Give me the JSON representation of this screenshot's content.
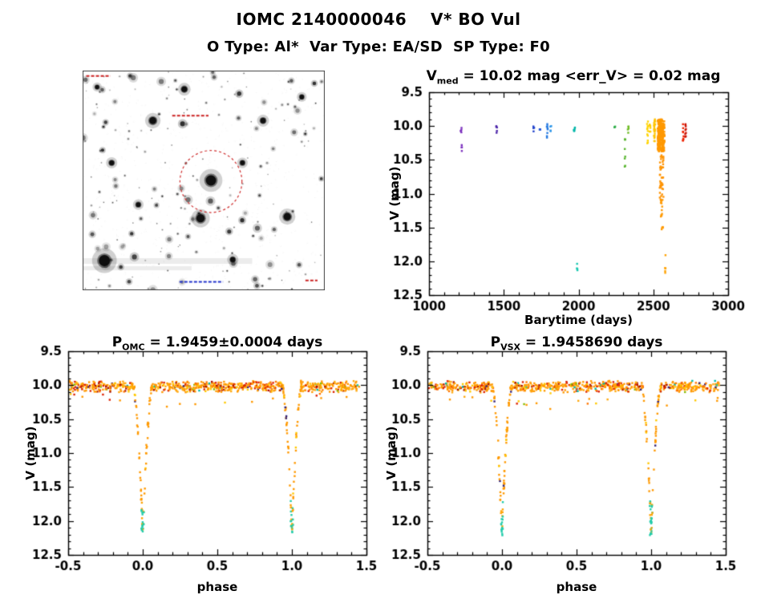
{
  "page": {
    "title": "IOMC 2140000046    V* BO Vul",
    "subtitle": "O Type: Al*  Var Type: EA/SD  SP Type: F0"
  },
  "chart_data": [
    {
      "id": "finder",
      "type": "image",
      "description": "Inverted grayscale star-field finder chart with dashed red circle marking the target star BO Vul; tiny red annotations at top and blue annotation at bottom",
      "background": "#ffffff",
      "circle_color": "#d03030",
      "circle": {
        "x": 0.53,
        "y": 0.505,
        "r": 0.128
      },
      "stars": [
        {
          "x": 0.53,
          "y": 0.5,
          "r": 6.5
        },
        {
          "x": 0.487,
          "y": 0.672,
          "r": 5.2
        },
        {
          "x": 0.09,
          "y": 0.865,
          "r": 7.0
        },
        {
          "x": 0.845,
          "y": 0.665,
          "r": 4.6
        },
        {
          "x": 0.29,
          "y": 0.228,
          "r": 4.4
        },
        {
          "x": 0.42,
          "y": 0.085,
          "r": 3.6
        },
        {
          "x": 0.745,
          "y": 0.228,
          "r": 3.4
        },
        {
          "x": 0.12,
          "y": 0.42,
          "r": 3.2
        },
        {
          "x": 0.66,
          "y": 0.42,
          "r": 3.0
        },
        {
          "x": 0.905,
          "y": 0.12,
          "r": 2.8
        },
        {
          "x": 0.23,
          "y": 0.61,
          "r": 3.0
        },
        {
          "x": 0.62,
          "y": 0.86,
          "r": 3.2
        },
        {
          "x": 0.06,
          "y": 0.075,
          "r": 2.6
        }
      ],
      "marks": [
        {
          "x": 0.015,
          "y": 0.025,
          "w": 0.1,
          "c": "#cc2222"
        },
        {
          "x": 0.37,
          "y": 0.205,
          "w": 0.15,
          "c": "#cc2222"
        },
        {
          "x": 0.4,
          "y": 0.962,
          "w": 0.18,
          "c": "#2233cc"
        },
        {
          "x": 0.92,
          "y": 0.955,
          "w": 0.05,
          "c": "#cc2222"
        }
      ],
      "n_faint_stars": 210,
      "seed": 7
    },
    {
      "id": "barytime",
      "type": "scatter",
      "title": {
        "main": "V",
        "sub": "med",
        "rest": " = 10.02 mag <err_V> = 0.02 mag"
      },
      "xlabel": "Barytime (days)",
      "ylabel": "V (mag)",
      "xlim": [
        1000,
        3000
      ],
      "ylim": [
        9.5,
        12.5
      ],
      "y_inverted": true,
      "x_ticks": [
        1000,
        1500,
        2000,
        2500,
        3000
      ],
      "x_tick_labels": [
        "1000",
        "1500",
        "2000",
        "2500",
        "3000"
      ],
      "x_minor": 100,
      "y_ticks": [
        9.5,
        10.0,
        10.5,
        11.0,
        11.5,
        12.0,
        12.5
      ],
      "y_tick_labels": [
        "9.5",
        "10.0",
        "10.5",
        "11.0",
        "11.5",
        "12.0",
        "12.5"
      ],
      "y_minor": 0.1,
      "seed": 5,
      "clusters": [
        [
          1215,
          6,
          10.0,
          10.12,
          5,
          "#7b2fbe"
        ],
        [
          1218,
          5,
          10.28,
          10.4,
          4,
          "#7b2fbe"
        ],
        [
          1452,
          8,
          10.0,
          10.1,
          5,
          "#4b23a8"
        ],
        [
          1700,
          8,
          10.0,
          10.08,
          4,
          "#2244cc"
        ],
        [
          1742,
          8,
          10.0,
          10.06,
          3,
          "#2455d4"
        ],
        [
          1790,
          8,
          9.97,
          10.2,
          8,
          "#2277e0"
        ],
        [
          1814,
          6,
          10.0,
          10.1,
          4,
          "#2e96e8"
        ],
        [
          1972,
          8,
          10.0,
          10.08,
          5,
          "#00b6a8"
        ],
        [
          1990,
          5,
          12.02,
          12.18,
          4,
          "#18c8b0"
        ],
        [
          2243,
          6,
          10.0,
          10.06,
          3,
          "#2fae4a"
        ],
        [
          2310,
          6,
          10.15,
          10.62,
          8,
          "#57b52e"
        ],
        [
          2332,
          6,
          10.0,
          10.12,
          5,
          "#6cbb22"
        ],
        [
          2462,
          8,
          9.92,
          10.26,
          12,
          "#ffd400"
        ],
        [
          2478,
          6,
          9.95,
          10.12,
          7,
          "#ffcc00"
        ],
        [
          2508,
          9,
          9.9,
          10.3,
          26,
          "#ffc400"
        ],
        [
          2552,
          45,
          9.9,
          10.38,
          240,
          "#ff9900"
        ],
        [
          2555,
          26,
          10.35,
          11.1,
          42,
          "#ff9300"
        ],
        [
          2557,
          14,
          11.05,
          11.55,
          15,
          "#ff9900"
        ],
        [
          2580,
          6,
          11.9,
          12.26,
          5,
          "#ffa200"
        ],
        [
          2700,
          6,
          9.95,
          10.22,
          9,
          "#ee2200"
        ],
        [
          2716,
          6,
          9.95,
          10.22,
          9,
          "#cc1100"
        ]
      ]
    },
    {
      "id": "phase_omc",
      "type": "scatter",
      "title": {
        "main": "P",
        "sub": "OMC",
        "rest": " = 1.9459±0.0004 days"
      },
      "xlabel": "phase",
      "ylabel": "V (mag)",
      "xlim": [
        -0.5,
        1.5
      ],
      "ylim": [
        9.5,
        12.5
      ],
      "y_inverted": true,
      "x_ticks": [
        -0.5,
        0.0,
        0.5,
        1.0,
        1.5
      ],
      "x_tick_labels": [
        "-0.5",
        "0.0",
        "0.5",
        "1.0",
        "1.5"
      ],
      "x_minor": 0.1,
      "y_ticks": [
        9.5,
        10.0,
        10.5,
        11.0,
        11.5,
        12.0,
        12.5
      ],
      "y_tick_labels": [
        "9.5",
        "10.0",
        "10.5",
        "11.0",
        "11.5",
        "12.0",
        "12.5"
      ],
      "y_minor": 0.1,
      "model": {
        "baseline": 10.02,
        "band_scatter": 0.09,
        "depth_mag": 12.16,
        "half_width": 0.065,
        "phase_min": -0.5,
        "phase_max": 1.46,
        "n_band": 760,
        "n_eclipse": 170,
        "seed": 11
      },
      "palette": {
        "band": [
          [
            "#ff9900",
            52
          ],
          [
            "#ffaa11",
            16
          ],
          [
            "#ffc800",
            8
          ],
          [
            "#ff7700",
            7
          ],
          [
            "#dd2200",
            8
          ],
          [
            "#aa1100",
            4
          ],
          [
            "#332277",
            1.5
          ],
          [
            "#00bbaa",
            1.5
          ],
          [
            "#88bb00",
            2
          ]
        ],
        "red_idx": [
          4,
          5
        ],
        "red_mult": 2.6,
        "red_windows": [
          [
            -0.47,
            -0.08
          ],
          [
            0.53,
            0.93
          ]
        ],
        "eclipse_bottom": "#22ccaa"
      }
    },
    {
      "id": "phase_vsx",
      "type": "scatter",
      "title": {
        "main": "P",
        "sub": "VSX",
        "rest": " = 1.9458690 days"
      },
      "xlabel": "phase",
      "ylabel": "V (mag)",
      "xlim": [
        -0.5,
        1.5
      ],
      "ylim": [
        9.5,
        12.5
      ],
      "y_inverted": true,
      "x_ticks": [
        -0.5,
        0.0,
        0.5,
        1.0,
        1.5
      ],
      "x_tick_labels": [
        "-0.5",
        "0.0",
        "0.5",
        "1.0",
        "1.5"
      ],
      "x_minor": 0.1,
      "y_ticks": [
        9.5,
        10.0,
        10.5,
        11.0,
        11.5,
        12.0,
        12.5
      ],
      "y_tick_labels": [
        "9.5",
        "10.0",
        "10.5",
        "11.0",
        "11.5",
        "12.0",
        "12.5"
      ],
      "y_minor": 0.1,
      "model": {
        "baseline": 10.02,
        "band_scatter": 0.09,
        "depth_mag": 12.16,
        "half_width": 0.065,
        "phase_min": -0.5,
        "phase_max": 1.46,
        "n_band": 760,
        "n_eclipse": 170,
        "seed": 29
      },
      "palette": {
        "band": [
          [
            "#ff9900",
            52
          ],
          [
            "#ffaa11",
            16
          ],
          [
            "#ffc800",
            8
          ],
          [
            "#ff7700",
            7
          ],
          [
            "#dd2200",
            8
          ],
          [
            "#aa1100",
            4
          ],
          [
            "#332277",
            1.5
          ],
          [
            "#00bbaa",
            1.5
          ],
          [
            "#88bb00",
            2
          ]
        ],
        "red_idx": [
          4,
          5
        ],
        "red_mult": 2.6,
        "red_windows": [
          [
            -0.47,
            -0.08
          ],
          [
            0.53,
            0.93
          ]
        ],
        "eclipse_bottom": "#22ccaa"
      }
    }
  ]
}
